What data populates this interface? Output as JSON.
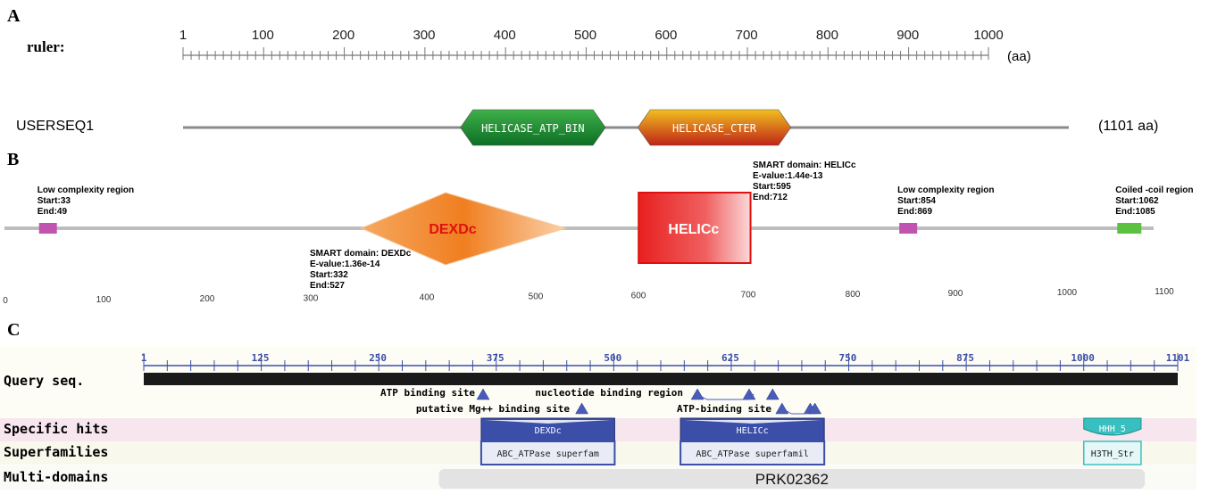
{
  "panels": {
    "a": "A",
    "b": "B",
    "c": "C"
  },
  "panel_a": {
    "ruler_label": "ruler:",
    "ticks": [
      1,
      100,
      200,
      300,
      400,
      500,
      600,
      700,
      800,
      900,
      1000
    ],
    "unit_label": "(aa)",
    "seq_name": "USERSEQ1",
    "seq_length_label": "(1101 aa)",
    "domains": [
      {
        "label": "HELICASE_ATP_BIN",
        "start": 345,
        "end": 525,
        "color_top": "#3fb04a",
        "color_bottom": "#0d6e25"
      },
      {
        "label": "HELICASE_CTER",
        "start": 565,
        "end": 755,
        "color_top": "#f0c020",
        "color_bottom": "#c02418"
      }
    ]
  },
  "panel_b": {
    "ticks": [
      0,
      100,
      200,
      300,
      400,
      500,
      600,
      700,
      800,
      900,
      1000,
      1100
    ],
    "features": [
      {
        "kind": "low-complexity",
        "title": "Low complexity region",
        "start": 33,
        "end": 49,
        "start_label": "Start:33",
        "end_label": "End:49",
        "color": "#c054b0"
      },
      {
        "kind": "smart-dexdc",
        "name": "DEXDc",
        "title": "SMART domain: DEXDc",
        "evalue": "E-value:1.36e-14",
        "start": 332,
        "end": 527,
        "start_label": "Start:332",
        "end_label": "End:527",
        "color": "#f08a30"
      },
      {
        "kind": "smart-helicc",
        "name": "HELICc",
        "title": "SMART domain: HELICc",
        "evalue": "E-value:1.44e-13",
        "start": 595,
        "end": 712,
        "start_label": "Start:595",
        "end_label": "End:712",
        "color": "#e8332b"
      },
      {
        "kind": "low-complexity",
        "title": "Low complexity region",
        "start": 854,
        "end": 869,
        "start_label": "Start:854",
        "end_label": "End:869",
        "color": "#c054b0"
      },
      {
        "kind": "coiled-coil",
        "title": "Coiled -coil region",
        "start": 1062,
        "end": 1085,
        "start_label": "Start:1062",
        "end_label": "End:1085",
        "color": "#5cc040"
      }
    ]
  },
  "panel_c": {
    "row_labels": {
      "query": "Query seq.",
      "specific": "Specific hits",
      "superfamilies": "Superfamilies",
      "multidomains": "Multi-domains"
    },
    "ticks": [
      1,
      125,
      250,
      375,
      500,
      625,
      750,
      875,
      1000,
      1101
    ],
    "site_labels": {
      "atp": "ATP binding site",
      "nucleotide": "nucleotide binding region",
      "mg": "putative Mg++ binding site",
      "atp2": "ATP-binding site"
    },
    "sites": {
      "atp": [
        362
      ],
      "nucleotide": [
        590,
        645,
        670
      ],
      "mg": [
        467
      ],
      "atp2": [
        680,
        710,
        715
      ]
    },
    "hits": [
      {
        "row": "specific",
        "label": "DEXDc",
        "start": 360,
        "end": 502
      },
      {
        "row": "specific",
        "label": "HELICc",
        "start": 572,
        "end": 725
      },
      {
        "row": "specific",
        "label": "HHH_5",
        "start": 1001,
        "end": 1062
      },
      {
        "row": "superfamilies",
        "label": "ABC_ATPase superfam",
        "start": 360,
        "end": 502
      },
      {
        "row": "superfamilies",
        "label": "ABC_ATPase superfamil",
        "start": 572,
        "end": 725
      },
      {
        "row": "superfamilies",
        "label": "H3TH_Str",
        "start": 1001,
        "end": 1062
      }
    ],
    "multidomain": {
      "label": "PRK02362",
      "start": 315,
      "end": 1066
    }
  },
  "colors": {
    "hit_blue": "#3b4ea8",
    "hit_teal": "#38c0c0",
    "specific_band": "#f7e6ee",
    "super_band": "#f8f8ec",
    "multi_band": "#fafaf6",
    "query_band": "#fdfdf6"
  }
}
